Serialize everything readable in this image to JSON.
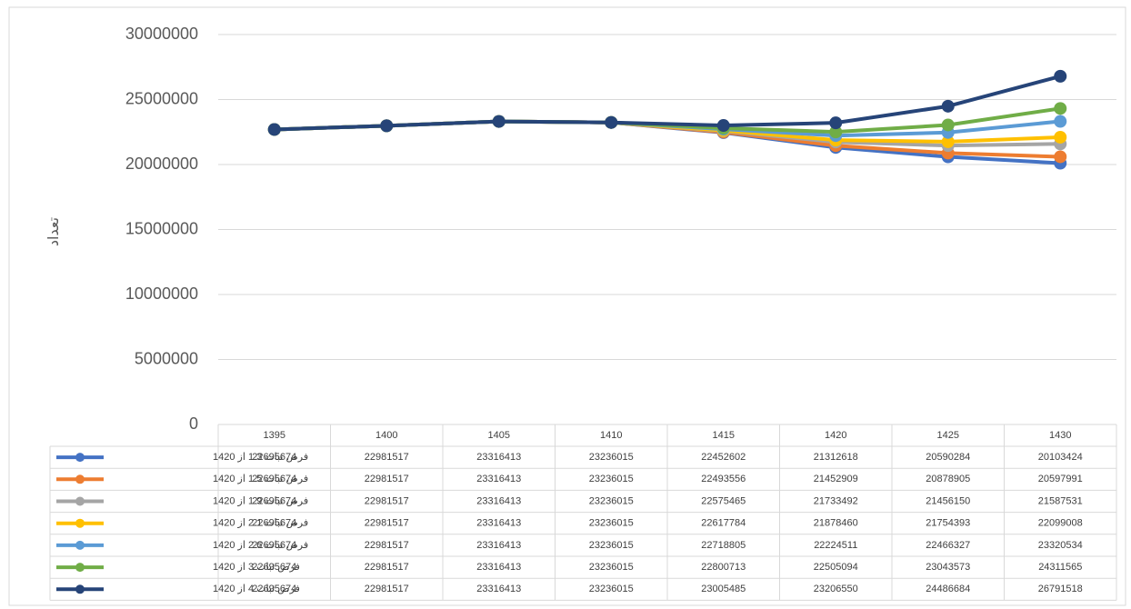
{
  "chart_data": {
    "type": "line",
    "y_axis_label": "تعداد",
    "categories": [
      "1395",
      "1400",
      "1405",
      "1410",
      "1415",
      "1420",
      "1425",
      "1430"
    ],
    "series": [
      {
        "name": "فرض ثبات 1.3 از 1420",
        "color": "#4472c4",
        "values": [
          22695674,
          22981517,
          23316413,
          23236015,
          22452602,
          21312618,
          20590284,
          20103424
        ]
      },
      {
        "name": "فرض ثبات 1.5 از 1420",
        "color": "#ed7d31",
        "values": [
          22695674,
          22981517,
          23316413,
          23236015,
          22493556,
          21452909,
          20878905,
          20597991
        ]
      },
      {
        "name": "فرض ثبات 1.9 از 1420",
        "color": "#a5a5a5",
        "values": [
          22695674,
          22981517,
          23316413,
          23236015,
          22575465,
          21733492,
          21456150,
          21587531
        ]
      },
      {
        "name": "فرض ثبات 2.1 از 1420",
        "color": "#ffc000",
        "values": [
          22695674,
          22981517,
          23316413,
          23236015,
          22617784,
          21878460,
          21754393,
          22099008
        ]
      },
      {
        "name": "فرض ثبات 2.6 از 1420",
        "color": "#5b9bd5",
        "values": [
          22695674,
          22981517,
          23316413,
          23236015,
          22718805,
          22224511,
          22466327,
          23320534
        ]
      },
      {
        "name": "فرض ثبات 3 از 1420",
        "color": "#70ad47",
        "values": [
          22695674,
          22981517,
          23316413,
          23236015,
          22800713,
          22505094,
          23043573,
          24311565
        ]
      },
      {
        "name": "فرض ثبات 4 از 1420",
        "color": "#264478",
        "values": [
          22695674,
          22981517,
          23316413,
          23236015,
          23005485,
          23206550,
          24486684,
          26791518
        ]
      }
    ],
    "ylim": [
      0,
      30000000
    ],
    "yticks": [
      0,
      5000000,
      10000000,
      15000000,
      20000000,
      25000000,
      30000000
    ],
    "grid": true
  }
}
